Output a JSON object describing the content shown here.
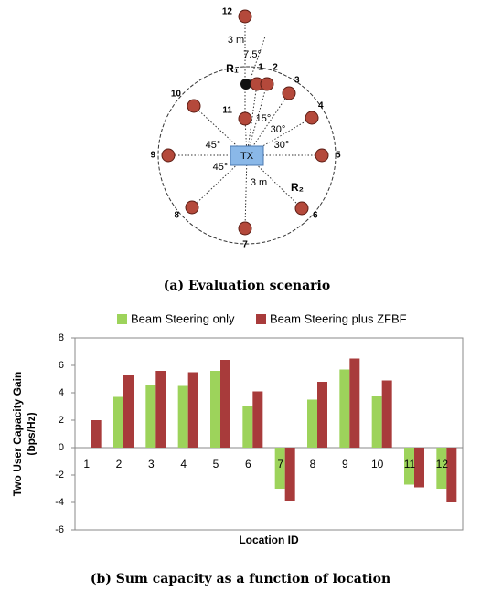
{
  "diagram": {
    "transmitter": "TX",
    "receivers": [
      "R₁",
      "R₂"
    ],
    "nodes": [
      "1",
      "2",
      "3",
      "4",
      "5",
      "6",
      "7",
      "8",
      "9",
      "10",
      "11",
      "12"
    ],
    "annotations": [
      "3 m",
      "7.5°",
      "15°",
      "30°",
      "30°",
      "45°",
      "45°",
      "3 m"
    ]
  },
  "caption_a": "(a) Evaluation scenario",
  "chart_data": {
    "type": "bar",
    "categories": [
      "1",
      "2",
      "3",
      "4",
      "5",
      "6",
      "7",
      "8",
      "9",
      "10",
      "11",
      "12"
    ],
    "series": [
      {
        "name": "Beam Steering only",
        "color": "#9dd35b",
        "values": [
          0,
          3.7,
          4.6,
          4.5,
          5.6,
          3.0,
          -3.0,
          3.5,
          5.7,
          3.8,
          -2.7,
          -3.0
        ]
      },
      {
        "name": "Beam Steering plus ZFBF",
        "color": "#a83b3b",
        "values": [
          2.0,
          5.3,
          5.6,
          5.5,
          6.4,
          4.1,
          -3.9,
          4.8,
          6.5,
          4.9,
          -2.9,
          -4.0
        ]
      }
    ],
    "ylim": [
      -6,
      8
    ],
    "yticks": [
      -6,
      -4,
      -2,
      0,
      2,
      4,
      6,
      8
    ],
    "ylabel": [
      "Two User Capacity Gain",
      "(bps/Hz)"
    ],
    "xlabel": "Location ID",
    "legend": "top"
  },
  "caption_b": "(b) Sum capacity as a function of location"
}
